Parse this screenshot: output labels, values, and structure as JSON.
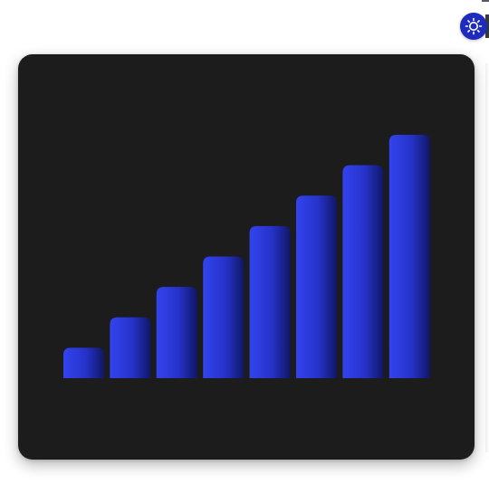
{
  "theme_toggle": {
    "icon": "sun-icon",
    "color": "#1f2bbd"
  },
  "chart_data": {
    "type": "bar",
    "categories": [
      "",
      "",
      "",
      "",
      "",
      "",
      "",
      ""
    ],
    "values": [
      1,
      2,
      3,
      4,
      5,
      6,
      7,
      8
    ],
    "ylim": [
      0,
      8
    ],
    "grid": false,
    "colors": {
      "bar_light": "#3344ee",
      "bar_dark": "#101766",
      "background": "#1c1c1c"
    }
  }
}
